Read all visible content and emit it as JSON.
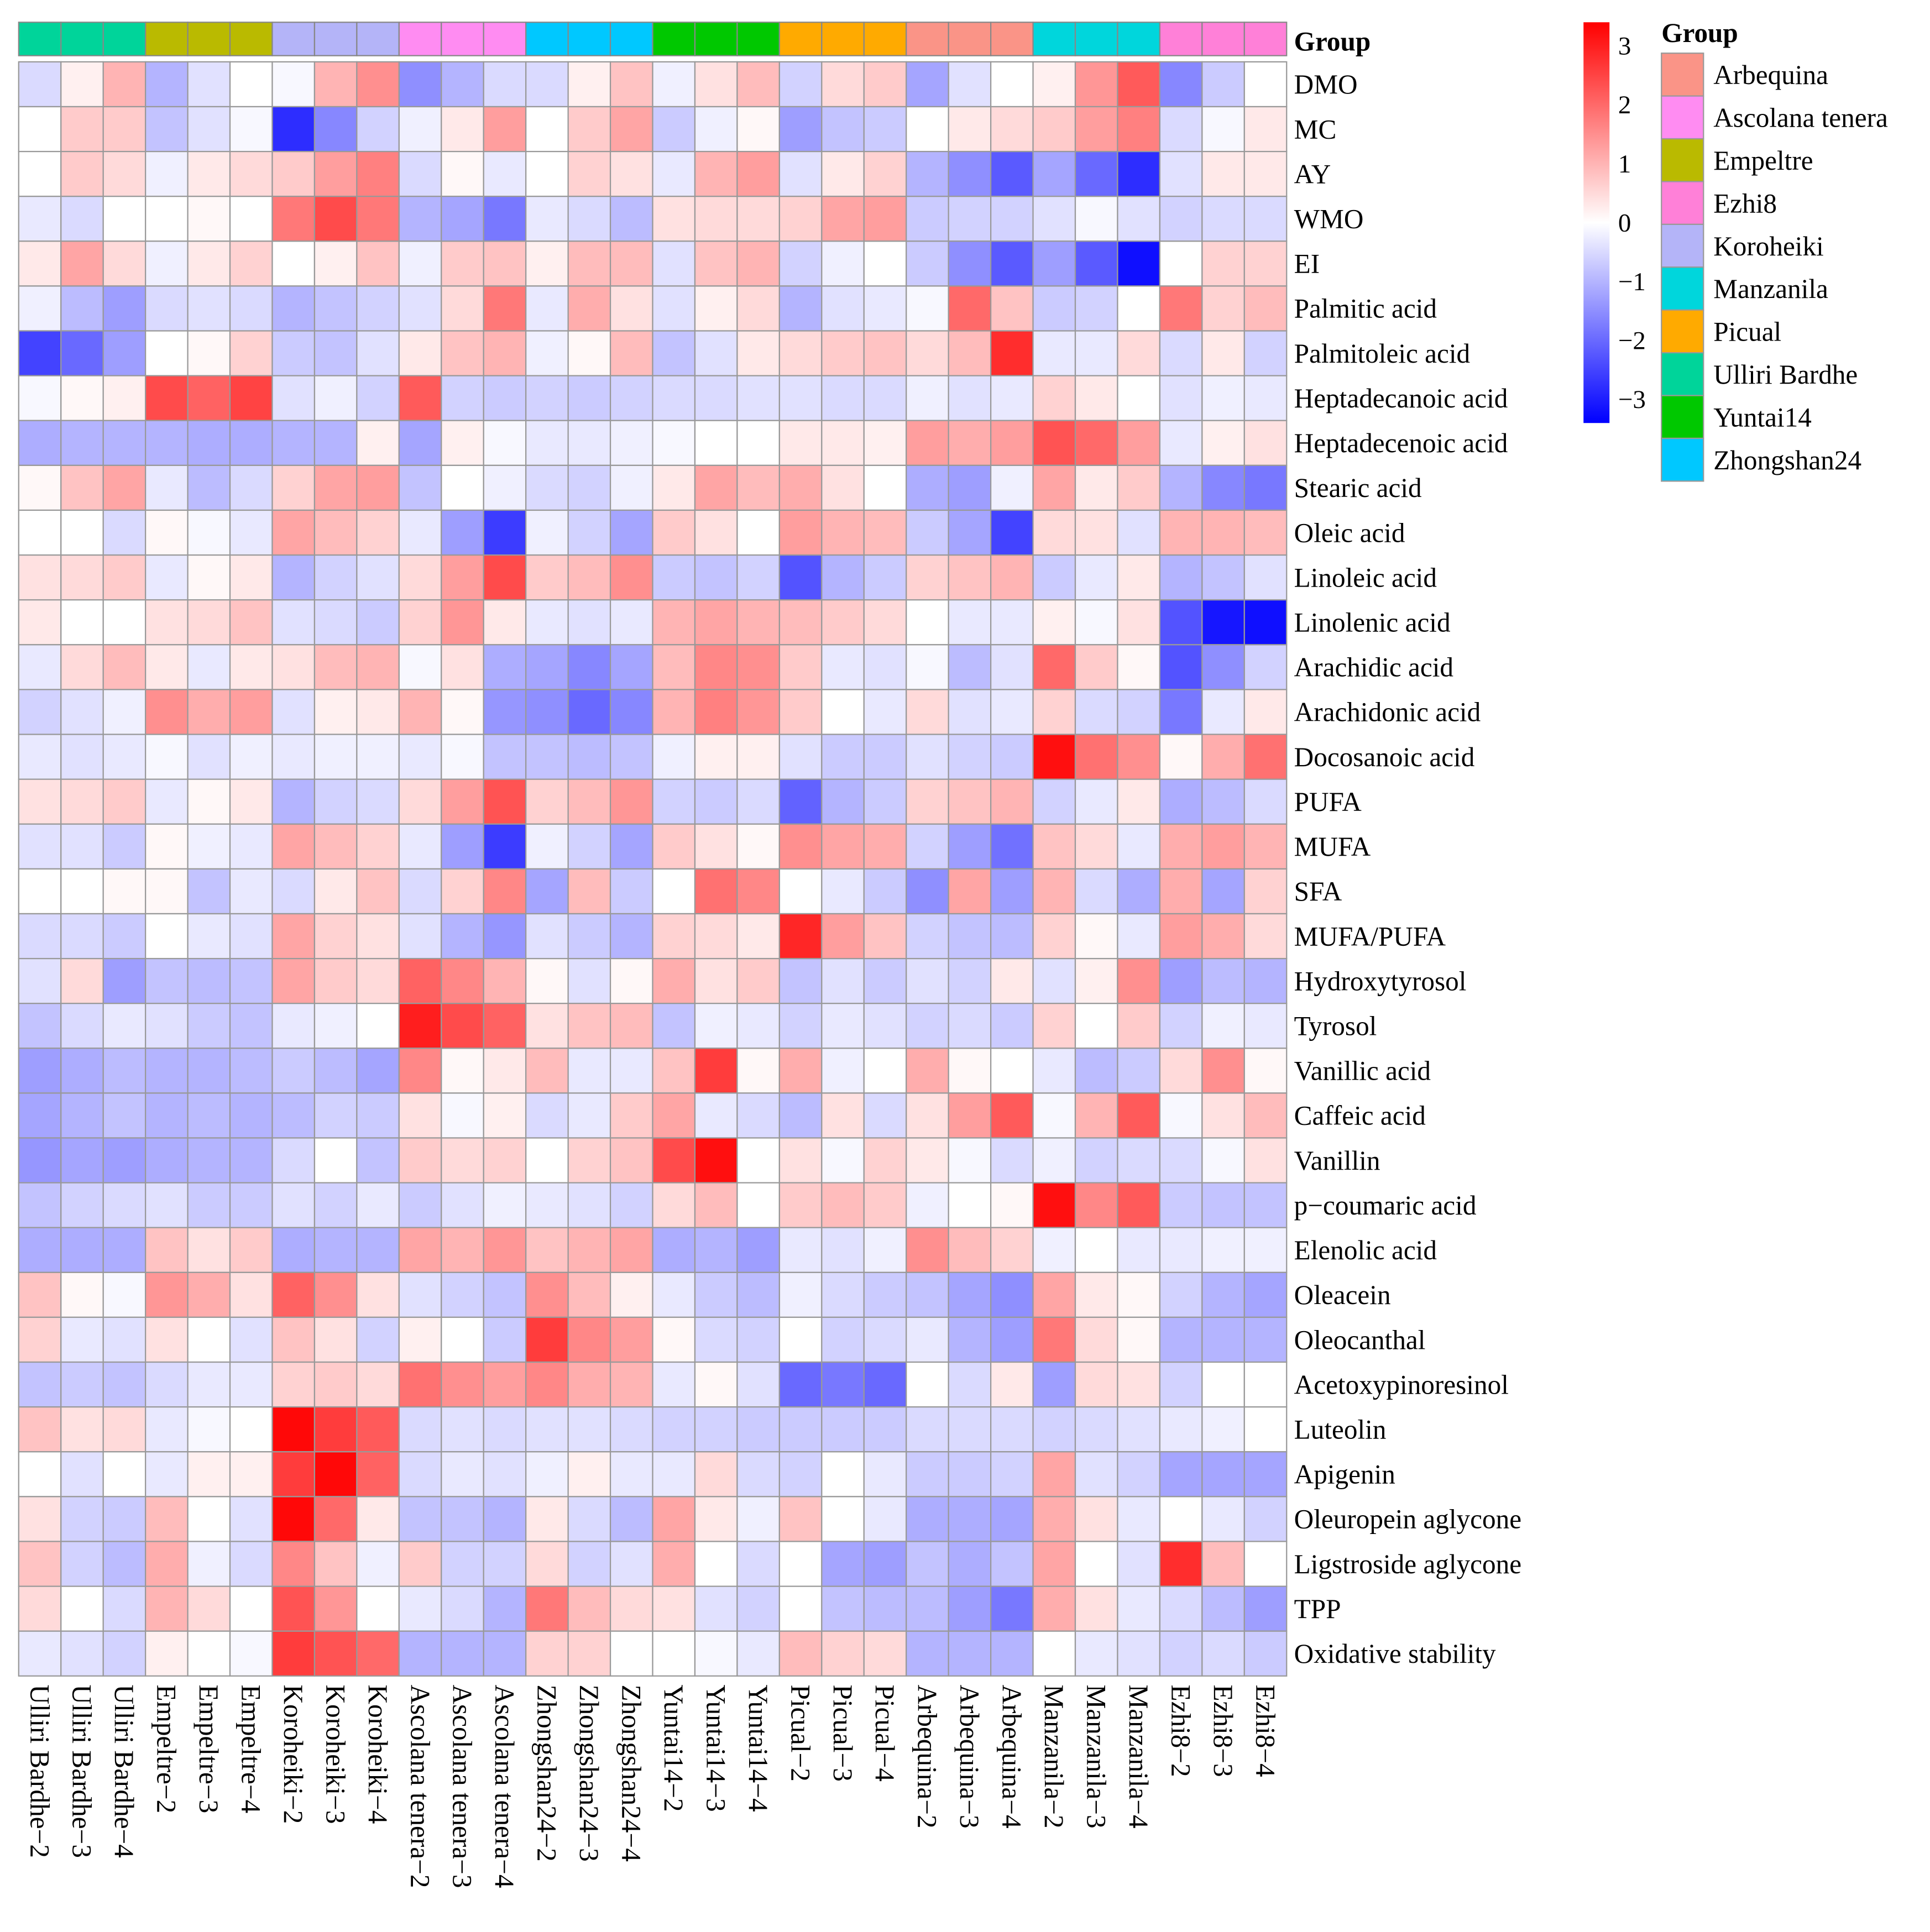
{
  "chart_data": {
    "type": "heatmap",
    "title": "",
    "annotation_title": "Group",
    "legend_title": "Group",
    "color_scale": {
      "min": -3.4,
      "max": 3.4,
      "low": "#0000FF",
      "mid": "#FFFFFF",
      "high": "#FF0000",
      "ticks": [
        3,
        2,
        1,
        0,
        -1,
        -2,
        -3
      ],
      "tick_labels": [
        "3",
        "2",
        "1",
        "0",
        "−1",
        "−2",
        "−3"
      ]
    },
    "groups": [
      {
        "name": "Arbequina",
        "color": "#FA9487"
      },
      {
        "name": "Ascolana tenera",
        "color": "#FF8CF2"
      },
      {
        "name": "Empeltre",
        "color": "#BABA00"
      },
      {
        "name": "Ezhi8",
        "color": "#FF80D8"
      },
      {
        "name": "Koroheiki",
        "color": "#B4B4F8"
      },
      {
        "name": "Manzanila",
        "color": "#00D6DC"
      },
      {
        "name": "Picual",
        "color": "#FFAA00"
      },
      {
        "name": "Ulliri Bardhe",
        "color": "#00D49A"
      },
      {
        "name": "Yuntai14",
        "color": "#00C800"
      },
      {
        "name": "Zhongshan24",
        "color": "#00C8FF"
      }
    ],
    "columns": [
      "Ulliri Bardhe−2",
      "Ulliri Bardhe−3",
      "Ulliri Bardhe−4",
      "Empeltre−2",
      "Empeltre−3",
      "Empeltre−4",
      "Koroheiki−2",
      "Koroheiki−3",
      "Koroheiki−4",
      "Ascolana tenera−2",
      "Ascolana tenera−3",
      "Ascolana tenera−4",
      "Zhongshan24−2",
      "Zhongshan24−3",
      "Zhongshan24−4",
      "Yuntai14−2",
      "Yuntai14−3",
      "Yuntai14−4",
      "Picual−2",
      "Picual−3",
      "Picual−4",
      "Arbequina−2",
      "Arbequina−3",
      "Arbequina−4",
      "Manzanila−2",
      "Manzanila−3",
      "Manzanila−4",
      "Ezhi8−2",
      "Ezhi8−3",
      "Ezhi8−4"
    ],
    "column_groups": [
      "Ulliri Bardhe",
      "Ulliri Bardhe",
      "Ulliri Bardhe",
      "Empeltre",
      "Empeltre",
      "Empeltre",
      "Koroheiki",
      "Koroheiki",
      "Koroheiki",
      "Ascolana tenera",
      "Ascolana tenera",
      "Ascolana tenera",
      "Zhongshan24",
      "Zhongshan24",
      "Zhongshan24",
      "Yuntai14",
      "Yuntai14",
      "Yuntai14",
      "Picual",
      "Picual",
      "Picual",
      "Arbequina",
      "Arbequina",
      "Arbequina",
      "Manzanila",
      "Manzanila",
      "Manzanila",
      "Ezhi8",
      "Ezhi8",
      "Ezhi8"
    ],
    "rows": [
      "DMO",
      "MC",
      "AY",
      "WMO",
      "EI",
      "Palmitic acid",
      "Palmitoleic acid",
      "Heptadecanoic acid",
      "Heptadecenoic acid",
      "Stearic acid",
      "Oleic acid",
      "Linoleic acid",
      "Linolenic acid",
      "Arachidic acid",
      "Arachidonic  acid",
      "Docosanoic acid",
      "PUFA",
      "MUFA",
      "SFA",
      "MUFA/PUFA",
      "Hydroxytyrosol",
      "Tyrosol",
      "Vanillic acid",
      "Caffeic acid",
      "Vanillin",
      "p−coumaric acid",
      "Elenolic acid",
      "Oleacein",
      "Oleocanthal",
      "Acetoxypinoresinol",
      "Luteolin",
      "Apigenin",
      "Oleuropein aglycone",
      "Ligstroside aglycone",
      "TPP",
      "Oxidative stability"
    ],
    "values": [
      [
        -0.5,
        0.2,
        1.0,
        -1.0,
        -0.4,
        0,
        -0.1,
        1.0,
        1.5,
        -1.5,
        -1.0,
        -0.5,
        -0.5,
        0.2,
        0.8,
        -0.2,
        0.4,
        0.9,
        -0.6,
        0.5,
        0.7,
        -1.2,
        -0.4,
        0,
        0.2,
        1.4,
        2.2,
        -1.6,
        -0.7,
        0
      ],
      [
        0,
        0.7,
        0.7,
        -0.8,
        -0.4,
        -0.1,
        -2.8,
        -1.6,
        -0.6,
        -0.2,
        0.3,
        1.3,
        0,
        0.7,
        1.2,
        -0.7,
        -0.2,
        0.1,
        -1.3,
        -0.8,
        -0.7,
        0,
        0.3,
        0.5,
        0.7,
        1.3,
        1.7,
        -0.5,
        -0.1,
        0.3
      ],
      [
        0,
        0.7,
        0.5,
        -0.2,
        0.3,
        0.5,
        0.7,
        1.3,
        1.7,
        -0.5,
        0.1,
        -0.3,
        0,
        0.6,
        0.4,
        -0.3,
        1.0,
        1.3,
        -0.4,
        0.3,
        0.6,
        -1.0,
        -1.5,
        -2.2,
        -1.2,
        -2.0,
        -2.8,
        -0.4,
        0.3,
        0.3
      ],
      [
        -0.3,
        -0.5,
        0,
        0,
        0.1,
        0,
        1.8,
        2.4,
        1.8,
        -1.0,
        -1.2,
        -1.8,
        -0.3,
        -0.5,
        -0.9,
        0.4,
        0.5,
        0.5,
        0.6,
        1.2,
        1.3,
        -0.7,
        -0.6,
        -0.6,
        -0.4,
        -0.1,
        -0.4,
        -0.6,
        -0.5,
        -0.5
      ],
      [
        0.3,
        1.2,
        0.5,
        -0.2,
        0.3,
        0.6,
        0,
        0.2,
        0.8,
        -0.2,
        0.7,
        0.8,
        0.2,
        0.9,
        0.9,
        -0.4,
        0.8,
        1.0,
        -0.6,
        -0.2,
        0,
        -0.7,
        -1.5,
        -2.2,
        -1.3,
        -2.2,
        -3.2,
        0,
        0.6,
        0.6
      ],
      [
        -0.2,
        -0.9,
        -1.3,
        -0.5,
        -0.4,
        -0.5,
        -1.0,
        -0.8,
        -0.6,
        -0.4,
        0.5,
        1.8,
        -0.3,
        1.1,
        0.4,
        -0.4,
        0.2,
        0.5,
        -1.0,
        -0.4,
        -0.3,
        -0.1,
        2.0,
        0.8,
        -0.7,
        -0.6,
        0,
        1.8,
        0.6,
        0.9
      ],
      [
        -2.5,
        -2.0,
        -1.3,
        0,
        0.1,
        0.6,
        -0.7,
        -0.8,
        -0.4,
        0.3,
        0.8,
        1.0,
        -0.2,
        0.1,
        0.9,
        -0.8,
        -0.4,
        0.3,
        0.5,
        0.7,
        0.8,
        0.5,
        0.9,
        2.8,
        -0.3,
        -0.3,
        0.5,
        -0.5,
        0.3,
        -0.6
      ],
      [
        -0.1,
        0.1,
        0.2,
        2.4,
        2.1,
        2.5,
        -0.4,
        -0.2,
        -0.6,
        2.2,
        -0.6,
        -0.7,
        -0.6,
        -0.7,
        -0.6,
        -0.5,
        -0.5,
        -0.4,
        -0.4,
        -0.5,
        -0.5,
        -0.2,
        -0.4,
        -0.3,
        0.6,
        0.3,
        0,
        -0.4,
        -0.2,
        -0.3
      ],
      [
        -1.1,
        -1.0,
        -1.0,
        -1.0,
        -1.1,
        -1.1,
        -1.0,
        -1.0,
        0.2,
        -1.2,
        0.2,
        -0.1,
        -0.3,
        -0.3,
        -0.2,
        -0.1,
        0,
        0,
        0.3,
        0.3,
        0.2,
        1.3,
        1.1,
        1.3,
        2.3,
        2.0,
        1.3,
        -0.3,
        0.2,
        0.4
      ],
      [
        0.1,
        0.8,
        1.2,
        -0.3,
        -0.9,
        -0.5,
        0.6,
        1.2,
        1.3,
        -0.8,
        0,
        -0.2,
        -0.5,
        -0.6,
        -0.2,
        0.3,
        1.2,
        0.9,
        1.1,
        0.4,
        0,
        -1.1,
        -1.3,
        -0.2,
        1.2,
        0.3,
        0.7,
        -1.0,
        -1.6,
        -1.8
      ],
      [
        0,
        0,
        -0.5,
        0.1,
        -0.1,
        -0.3,
        1.2,
        0.9,
        0.6,
        -0.3,
        -1.3,
        -2.6,
        -0.2,
        -0.6,
        -1.2,
        0.7,
        0.4,
        0,
        1.3,
        1.0,
        0.9,
        -0.7,
        -1.2,
        -2.5,
        0.5,
        0.4,
        -0.4,
        1.0,
        1.0,
        0.9
      ],
      [
        0.4,
        0.5,
        0.7,
        -0.3,
        0.1,
        0.3,
        -1.0,
        -0.6,
        -0.4,
        0.5,
        1.3,
        2.4,
        0.7,
        0.9,
        1.5,
        -0.7,
        -0.8,
        -0.6,
        -2.3,
        -1.0,
        -0.7,
        0.6,
        0.8,
        1.0,
        -0.7,
        -0.3,
        0.3,
        -1.0,
        -0.8,
        -0.4
      ],
      [
        0.3,
        0,
        0,
        0.4,
        0.5,
        0.8,
        -0.4,
        -0.5,
        -0.7,
        0.6,
        1.4,
        0.3,
        -0.3,
        -0.4,
        -0.3,
        1.0,
        1.2,
        1.0,
        0.9,
        0.7,
        0.5,
        0,
        -0.3,
        -0.3,
        0.2,
        -0.1,
        0.4,
        -2.3,
        -3.1,
        -3.2
      ],
      [
        -0.3,
        0.5,
        0.9,
        0.3,
        -0.3,
        0.3,
        0.4,
        0.9,
        1.0,
        -0.1,
        0.4,
        -1.1,
        -1.2,
        -1.6,
        -1.2,
        0.9,
        1.6,
        1.5,
        0.7,
        -0.3,
        -0.4,
        -0.1,
        -0.9,
        -0.4,
        2.0,
        0.7,
        0.1,
        -2.3,
        -1.5,
        -0.6
      ],
      [
        -0.6,
        -0.4,
        -0.2,
        1.5,
        1.1,
        1.3,
        -0.4,
        0.2,
        0.3,
        1.0,
        0.1,
        -1.4,
        -1.5,
        -2.0,
        -1.6,
        1.0,
        1.7,
        1.4,
        0.7,
        0,
        -0.3,
        0.5,
        -0.4,
        -0.3,
        0.6,
        -0.5,
        -0.6,
        -1.8,
        -0.3,
        0.3
      ],
      [
        -0.3,
        -0.4,
        -0.3,
        -0.1,
        -0.4,
        -0.2,
        -0.3,
        -0.2,
        -0.2,
        -0.3,
        -0.1,
        -0.8,
        -0.8,
        -0.9,
        -0.8,
        -0.2,
        0.2,
        0.2,
        -0.4,
        -0.7,
        -0.7,
        -0.4,
        -0.6,
        -0.7,
        3.2,
        1.9,
        1.5,
        0.1,
        1.1,
        1.9
      ],
      [
        0.4,
        0.5,
        0.7,
        -0.3,
        0.1,
        0.3,
        -1.0,
        -0.6,
        -0.5,
        0.5,
        1.3,
        2.3,
        0.6,
        0.9,
        1.4,
        -0.6,
        -0.7,
        -0.5,
        -2.1,
        -1.0,
        -0.7,
        0.6,
        0.8,
        1.0,
        -0.6,
        -0.3,
        0.3,
        -1.1,
        -0.9,
        -0.5
      ],
      [
        -0.4,
        -0.4,
        -0.7,
        0.1,
        -0.2,
        -0.3,
        1.2,
        0.9,
        0.6,
        -0.3,
        -1.3,
        -2.6,
        -0.2,
        -0.6,
        -1.2,
        0.7,
        0.4,
        0.1,
        1.5,
        1.2,
        1.1,
        -0.6,
        -1.3,
        -1.9,
        0.8,
        0.5,
        -0.3,
        1.1,
        1.3,
        1.0
      ],
      [
        0,
        0,
        0.1,
        0.1,
        -0.8,
        -0.3,
        -0.5,
        0.3,
        0.8,
        -0.5,
        0.6,
        1.6,
        -1.2,
        0.9,
        -0.7,
        0,
        1.9,
        1.6,
        0,
        -0.3,
        -0.7,
        -1.5,
        1.2,
        -1.3,
        1.0,
        -0.5,
        -1.1,
        1.1,
        -1.2,
        0.6
      ],
      [
        -0.5,
        -0.5,
        -0.7,
        0,
        -0.3,
        -0.4,
        1.2,
        0.6,
        0.4,
        -0.4,
        -1.0,
        -1.4,
        -0.4,
        -0.7,
        -1.0,
        0.6,
        0.5,
        0.3,
        2.9,
        1.3,
        0.8,
        -0.6,
        -0.8,
        -0.9,
        0.6,
        0.1,
        -0.3,
        1.3,
        1.1,
        0.5
      ],
      [
        -0.4,
        0.5,
        -1.3,
        -0.8,
        -0.9,
        -0.8,
        1.2,
        0.7,
        0.5,
        2.1,
        1.6,
        1.0,
        0.1,
        -0.4,
        0.1,
        1.1,
        0.4,
        0.7,
        -0.8,
        -0.4,
        -0.7,
        -0.4,
        -0.6,
        0.3,
        -0.4,
        0.2,
        1.5,
        -1.3,
        -0.9,
        -1.0
      ],
      [
        -0.8,
        -0.5,
        -0.3,
        -0.4,
        -0.7,
        -0.8,
        -0.3,
        -0.2,
        0,
        3.0,
        2.4,
        2.1,
        0.4,
        0.8,
        0.9,
        -0.8,
        -0.2,
        -0.3,
        -0.6,
        -0.3,
        -0.4,
        -0.6,
        -0.5,
        -0.7,
        0.6,
        0,
        0.7,
        -0.6,
        -0.2,
        -0.3
      ],
      [
        -1.3,
        -1.1,
        -0.9,
        -1.0,
        -1.0,
        -0.9,
        -0.7,
        -0.9,
        -1.2,
        1.6,
        0.1,
        0.3,
        0.9,
        -0.3,
        -0.3,
        0.8,
        2.6,
        0.1,
        1.1,
        -0.2,
        0,
        1.1,
        0.1,
        0,
        -0.3,
        -0.9,
        -0.7,
        0.5,
        1.5,
        0.1
      ],
      [
        -1.2,
        -1.0,
        -0.8,
        -1.0,
        -0.9,
        -1.0,
        -0.9,
        -0.6,
        -0.7,
        0.4,
        -0.1,
        0.2,
        -0.5,
        -0.3,
        0.7,
        1.2,
        -0.3,
        -0.5,
        -0.9,
        0.4,
        -0.5,
        0.4,
        1.3,
        2.2,
        -0.1,
        1.0,
        2.2,
        -0.1,
        0.4,
        0.9
      ],
      [
        -1.4,
        -1.2,
        -1.3,
        -1.1,
        -1.0,
        -1.0,
        -0.5,
        0,
        -0.8,
        0.7,
        0.5,
        0.6,
        0,
        0.6,
        0.8,
        2.4,
        3.2,
        0,
        0.4,
        -0.1,
        0.6,
        0.3,
        -0.1,
        -0.5,
        -0.2,
        -0.6,
        -0.5,
        -0.5,
        -0.1,
        0.4
      ],
      [
        -0.8,
        -0.6,
        -0.5,
        -0.4,
        -0.7,
        -0.7,
        -0.4,
        -0.6,
        -0.3,
        -0.7,
        -0.4,
        -0.2,
        -0.3,
        -0.4,
        -0.6,
        0.5,
        0.9,
        0,
        0.7,
        0.9,
        0.7,
        -0.2,
        0,
        0.1,
        3.2,
        1.6,
        2.2,
        -0.7,
        -0.8,
        -0.8
      ],
      [
        -1.1,
        -1.1,
        -1.1,
        0.8,
        0.4,
        0.7,
        -1.1,
        -1.0,
        -1.0,
        1.2,
        1.0,
        1.4,
        0.8,
        1.0,
        1.2,
        -1.1,
        -1.0,
        -1.3,
        -0.3,
        -0.4,
        -0.2,
        1.5,
        0.9,
        0.6,
        -0.2,
        0,
        -0.3,
        -0.3,
        -0.2,
        -0.2
      ],
      [
        0.8,
        0.1,
        -0.1,
        1.4,
        1.1,
        0.4,
        2.1,
        1.5,
        0.4,
        -0.4,
        -0.6,
        -0.8,
        1.5,
        0.9,
        0.2,
        -0.3,
        -0.7,
        -0.9,
        -0.2,
        -0.5,
        -0.7,
        -0.8,
        -1.2,
        -1.5,
        1.2,
        0.3,
        0.1,
        -0.6,
        -1.0,
        -1.2
      ],
      [
        0.6,
        -0.3,
        -0.4,
        0.4,
        0,
        -0.4,
        0.8,
        0.4,
        -0.6,
        0.2,
        0,
        -0.7,
        2.6,
        1.6,
        1.3,
        0.1,
        -0.5,
        -0.6,
        0,
        -0.6,
        -0.5,
        -0.3,
        -1.0,
        -1.3,
        1.8,
        0.5,
        0.1,
        -1.0,
        -1.0,
        -1.0
      ],
      [
        -0.8,
        -0.7,
        -0.8,
        -0.5,
        -0.3,
        -0.3,
        0.6,
        0.7,
        0.5,
        1.9,
        1.5,
        1.3,
        1.6,
        1.1,
        1.0,
        -0.3,
        0.1,
        -0.4,
        -2.0,
        -1.8,
        -2.0,
        0,
        -0.5,
        0.3,
        -1.3,
        0.5,
        0.4,
        -0.6,
        0,
        0
      ],
      [
        0.8,
        0.4,
        0.5,
        -0.3,
        -0.1,
        0,
        3.3,
        2.6,
        2.2,
        -0.5,
        -0.4,
        -0.5,
        -0.4,
        -0.4,
        -0.5,
        -0.6,
        -0.6,
        -0.7,
        -0.7,
        -0.7,
        -0.7,
        -0.5,
        -0.5,
        -0.5,
        -0.6,
        -0.5,
        -0.4,
        -0.3,
        -0.2,
        0
      ],
      [
        0,
        -0.4,
        0,
        -0.3,
        0.2,
        0.2,
        2.6,
        3.3,
        2.1,
        -0.5,
        -0.3,
        -0.4,
        -0.2,
        0.2,
        -0.3,
        -0.3,
        0.5,
        -0.5,
        -0.6,
        0,
        -0.3,
        -0.7,
        -0.7,
        -0.6,
        1.2,
        -0.4,
        -0.6,
        -1.2,
        -1.2,
        -1.2
      ],
      [
        0.4,
        -0.6,
        -0.7,
        0.9,
        0,
        -0.4,
        3.3,
        2.0,
        0.3,
        -0.8,
        -0.8,
        -1.0,
        0.3,
        -0.5,
        -0.9,
        1.2,
        0.3,
        -0.2,
        0.8,
        0,
        -0.3,
        -1.1,
        -1.1,
        -1.2,
        1.1,
        0.4,
        -0.3,
        0,
        -0.3,
        -0.6
      ],
      [
        0.8,
        -0.6,
        -0.9,
        1.1,
        -0.2,
        -0.5,
        1.6,
        0.8,
        -0.2,
        0.7,
        -0.6,
        -0.6,
        0.5,
        -0.6,
        -0.4,
        1.1,
        0,
        -0.5,
        0,
        -1.2,
        -1.3,
        -0.8,
        -1.1,
        -0.8,
        1.2,
        0,
        -0.4,
        2.8,
        0.9,
        0
      ],
      [
        0.5,
        0,
        -0.5,
        1.0,
        0.5,
        0,
        2.3,
        1.4,
        0,
        -0.3,
        -0.5,
        -1.0,
        1.8,
        0.9,
        0.5,
        0.4,
        -0.4,
        -0.6,
        0,
        -0.8,
        -0.9,
        -0.9,
        -1.3,
        -1.8,
        1.1,
        0.4,
        -0.3,
        -0.5,
        -0.9,
        -1.3
      ],
      [
        -0.3,
        -0.4,
        -0.6,
        0.2,
        0,
        -0.1,
        2.6,
        2.3,
        2.0,
        -1.0,
        -1.0,
        -1.0,
        0.6,
        0.6,
        0,
        0,
        -0.1,
        -0.3,
        0.9,
        0.6,
        0.5,
        -1.0,
        -1.0,
        -1.0,
        0,
        -0.3,
        -0.4,
        -0.6,
        -0.5,
        -0.7
      ]
    ]
  }
}
